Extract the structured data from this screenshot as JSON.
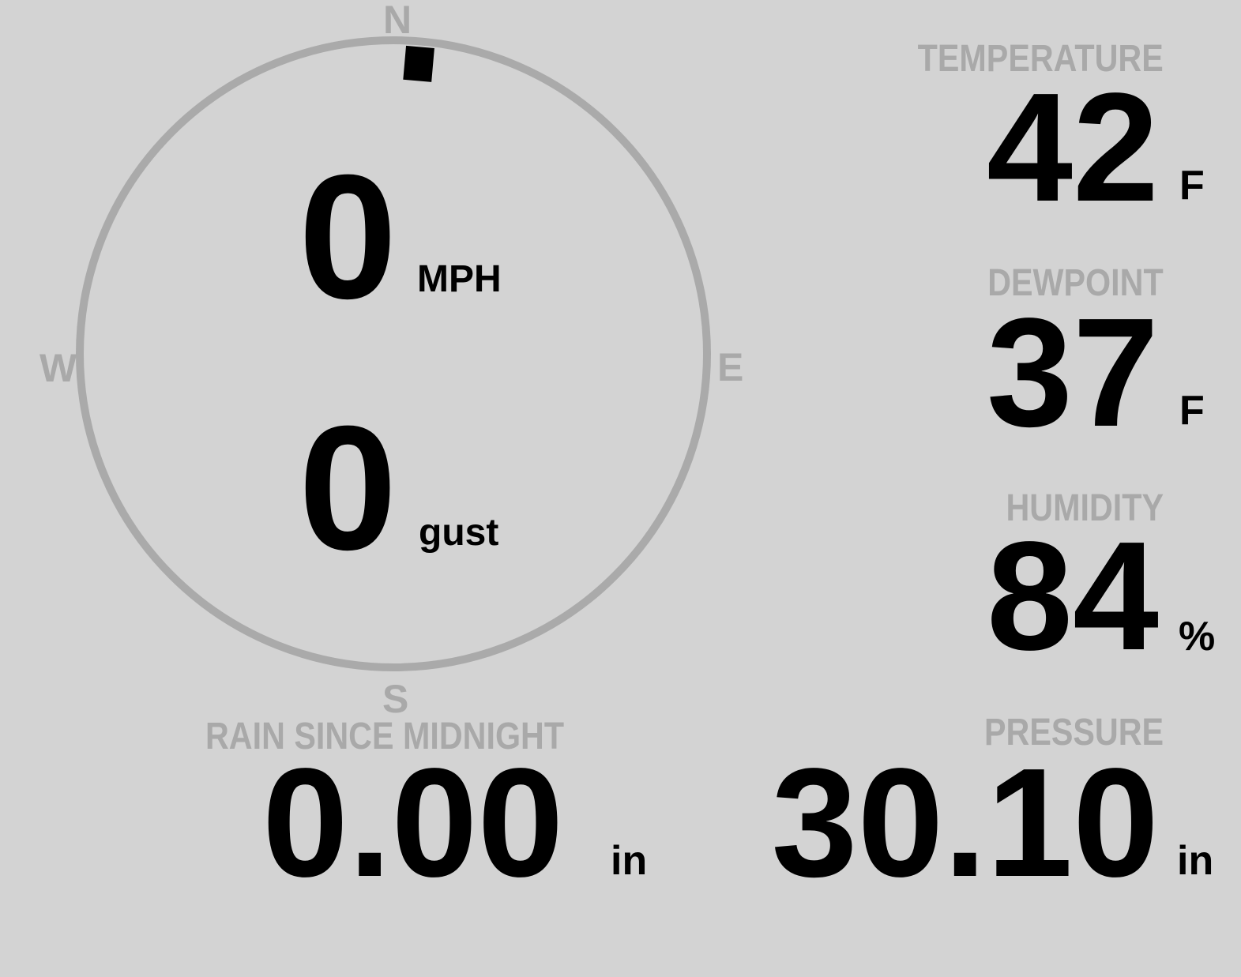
{
  "wind": {
    "direction_deg": 5,
    "speed": "0",
    "speed_unit": "MPH",
    "gust": "0",
    "gust_unit": "gust",
    "cardinals": {
      "n": "N",
      "e": "E",
      "s": "S",
      "w": "W"
    },
    "ring_color": "#aaaaaa",
    "needle_color": "#000000"
  },
  "temperature": {
    "label": "TEMPERATURE",
    "value": "42",
    "unit": "F"
  },
  "dewpoint": {
    "label": "DEWPOINT",
    "value": "37",
    "unit": "F"
  },
  "humidity": {
    "label": "HUMIDITY",
    "value": "84",
    "unit": "%"
  },
  "rain": {
    "label": "RAIN SINCE MIDNIGHT",
    "value": "0.00",
    "unit": "in"
  },
  "pressure": {
    "label": "PRESSURE",
    "value": "30.10",
    "unit": "in"
  },
  "colors": {
    "background": "#d3d3d3",
    "label": "#a9a9a9",
    "value": "#000000"
  }
}
